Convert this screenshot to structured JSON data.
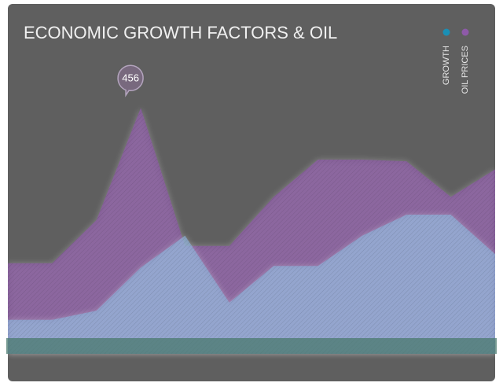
{
  "chart_data": {
    "type": "area",
    "title": "ECONOMIC GROWTH FACTORS & OIL",
    "categories": [
      null,
      null,
      null,
      null,
      null,
      null,
      null,
      null,
      null,
      null,
      null,
      null
    ],
    "series": [
      {
        "name": "GROWTH",
        "color": "#1a8fb5",
        "values": [
          63,
          63,
          80,
          160,
          219,
          95,
          163,
          163,
          219,
          258,
          258,
          185
        ]
      },
      {
        "name": "OIL PRICES",
        "color": "#8e5aa8",
        "values": [
          168,
          168,
          248,
          456,
          200,
          200,
          291,
          360,
          360,
          357,
          291,
          342
        ]
      }
    ],
    "ylim": [
      0,
      570
    ],
    "legend": "top-right"
  }
}
